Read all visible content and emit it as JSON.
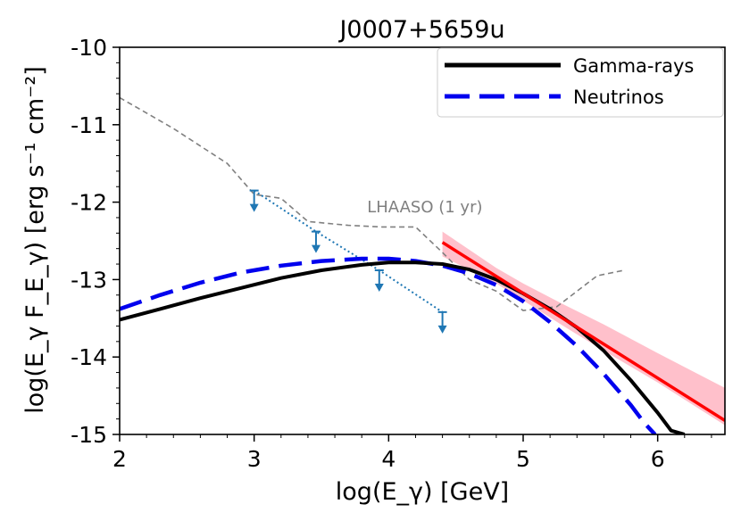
{
  "chart_data": {
    "type": "line",
    "title": "J0007+5659u",
    "xlabel": "log(E_γ) [GeV]",
    "ylabel": "log(E_γ F_E_γ) [erg s⁻¹ cm⁻²]",
    "xlim": [
      2,
      6.5
    ],
    "ylim": [
      -15,
      -10
    ],
    "xticks": [
      2,
      3,
      4,
      5,
      6
    ],
    "xtick_labels": [
      "2",
      "3",
      "4",
      "5",
      "6"
    ],
    "yticks": [
      -15,
      -14,
      -13,
      -12,
      -11,
      -10
    ],
    "ytick_labels": [
      "-15",
      "-14",
      "-13",
      "-12",
      "-11",
      "-10"
    ],
    "legend_position": "top-right",
    "annotation": {
      "text": "LHAASO (1 yr)",
      "x": 3.84,
      "y": -12.05,
      "color": "#808080"
    },
    "series": [
      {
        "name": "Gamma-rays",
        "legend": "Gamma-rays",
        "style": "solid",
        "color": "#000000",
        "x": [
          2.0,
          2.3,
          2.6,
          2.9,
          3.2,
          3.5,
          3.8,
          4.0,
          4.2,
          4.4,
          4.6,
          4.8,
          5.0,
          5.2,
          5.4,
          5.6,
          5.8,
          6.0,
          6.1,
          6.2
        ],
        "y": [
          -13.52,
          -13.38,
          -13.24,
          -13.11,
          -12.98,
          -12.88,
          -12.81,
          -12.78,
          -12.78,
          -12.8,
          -12.87,
          -13.0,
          -13.18,
          -13.38,
          -13.62,
          -13.92,
          -14.3,
          -14.72,
          -14.95,
          -15.0
        ]
      },
      {
        "name": "Neutrinos",
        "legend": "Neutrinos",
        "style": "dashed",
        "color": "#0000ee",
        "x": [
          2.0,
          2.3,
          2.6,
          2.9,
          3.2,
          3.5,
          3.8,
          4.0,
          4.2,
          4.4,
          4.6,
          4.8,
          5.0,
          5.2,
          5.4,
          5.6,
          5.8,
          5.9,
          5.98
        ],
        "y": [
          -13.38,
          -13.2,
          -13.04,
          -12.91,
          -12.82,
          -12.76,
          -12.73,
          -12.73,
          -12.76,
          -12.82,
          -12.92,
          -13.07,
          -13.28,
          -13.55,
          -13.86,
          -14.22,
          -14.62,
          -14.85,
          -15.0
        ]
      },
      {
        "name": "LHAASO sensitivity",
        "style": "dashed-thin",
        "color": "#808080",
        "x": [
          2.0,
          2.4,
          2.8,
          3.0,
          3.2,
          3.4,
          3.7,
          3.95,
          4.2,
          4.4,
          4.6,
          4.8,
          5.0,
          5.25,
          5.4,
          5.55,
          5.75
        ],
        "y": [
          -10.65,
          -11.05,
          -11.5,
          -11.9,
          -11.95,
          -12.25,
          -12.3,
          -12.32,
          -12.32,
          -12.65,
          -13.0,
          -13.15,
          -13.4,
          -13.35,
          -13.15,
          -12.95,
          -12.88
        ]
      },
      {
        "name": "Upper limits",
        "style": "dotted",
        "color": "#1f77b4",
        "x": [
          3.0,
          3.46,
          3.93,
          4.4
        ],
        "y": [
          -11.85,
          -12.38,
          -12.88,
          -13.42
        ]
      },
      {
        "name": "Power-law fit",
        "style": "solid",
        "color": "#ff0000",
        "x": [
          4.4,
          6.5
        ],
        "y": [
          -12.52,
          -14.82
        ]
      }
    ],
    "upper_limits": [
      {
        "x": 3.0,
        "y": -11.85
      },
      {
        "x": 3.46,
        "y": -12.38
      },
      {
        "x": 3.93,
        "y": -12.88
      },
      {
        "x": 4.4,
        "y": -13.42
      }
    ],
    "uncertainty_band": {
      "color": "#ffc0cb",
      "x": [
        4.4,
        4.8,
        5.0,
        5.3,
        5.6,
        6.0,
        6.5
      ],
      "lower": [
        -12.7,
        -13.05,
        -13.27,
        -13.6,
        -13.92,
        -14.33,
        -14.88
      ],
      "upper": [
        -12.38,
        -12.85,
        -13.05,
        -13.32,
        -13.58,
        -13.95,
        -14.4
      ]
    }
  }
}
